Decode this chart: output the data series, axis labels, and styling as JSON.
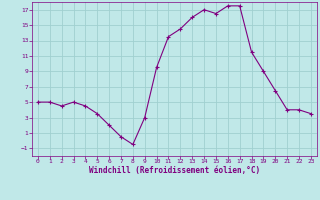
{
  "x": [
    0,
    1,
    2,
    3,
    4,
    5,
    6,
    7,
    8,
    9,
    10,
    11,
    12,
    13,
    14,
    15,
    16,
    17,
    18,
    19,
    20,
    21,
    22,
    23
  ],
  "y": [
    5,
    5,
    4.5,
    5,
    4.5,
    3.5,
    2,
    0.5,
    -0.5,
    3,
    9.5,
    13.5,
    14.5,
    16,
    17,
    16.5,
    17.5,
    17.5,
    11.5,
    9,
    6.5,
    4,
    4,
    3.5
  ],
  "line_color": "#800080",
  "marker_color": "#800080",
  "bg_color": "#c0e8e8",
  "grid_color": "#a0d0d0",
  "xlabel": "Windchill (Refroidissement éolien,°C)",
  "xlabel_color": "#800080",
  "tick_color": "#800080",
  "ylim": [
    -2,
    18
  ],
  "xlim": [
    -0.5,
    23.5
  ],
  "yticks": [
    -1,
    1,
    3,
    5,
    7,
    9,
    11,
    13,
    15,
    17
  ],
  "xticks": [
    0,
    1,
    2,
    3,
    4,
    5,
    6,
    7,
    8,
    9,
    10,
    11,
    12,
    13,
    14,
    15,
    16,
    17,
    18,
    19,
    20,
    21,
    22,
    23
  ],
  "figsize": [
    3.2,
    2.0
  ],
  "dpi": 100
}
